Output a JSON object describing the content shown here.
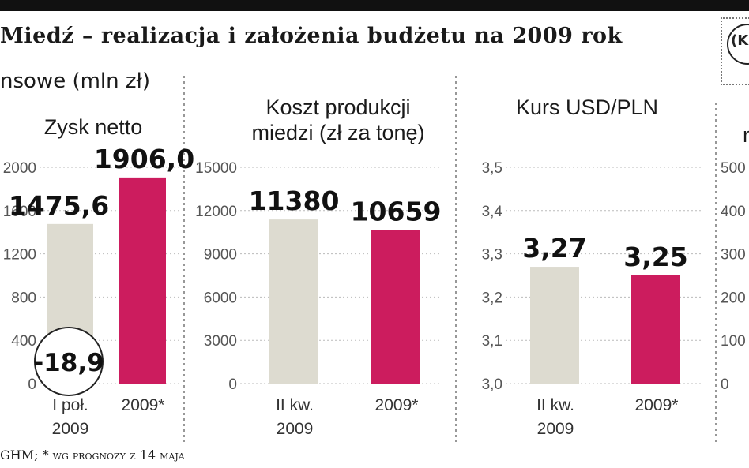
{
  "header": {
    "title": "Miedź – realizacja i założenia budżetu na 2009 rok",
    "section_label": "nsowe (mln zł)",
    "badge_text": "(K"
  },
  "footer": {
    "text": "GHM; * wg prognozy z 14 maja"
  },
  "colors": {
    "base_bar": "#dddbd0",
    "highlight_bar": "#cc1c5e"
  },
  "chart_data": [
    {
      "type": "bar",
      "title": "Zysk netto",
      "categories": [
        "I poł.\n2009",
        "2009*"
      ],
      "values": [
        1475.6,
        1906.0
      ],
      "value_labels": [
        "1475,6",
        "1906,0"
      ],
      "annotation": "-18,9",
      "yticks": [
        "0",
        "400",
        "800",
        "1200",
        "1600",
        "2000"
      ],
      "ylim": [
        0,
        2000
      ]
    },
    {
      "type": "bar",
      "title": "Koszt produkcji\nmiedzi (zł za tonę)",
      "categories": [
        "II kw.\n2009",
        "2009*"
      ],
      "values": [
        11380,
        10659
      ],
      "value_labels": [
        "11380",
        "10659"
      ],
      "yticks": [
        "0",
        "3000",
        "6000",
        "9000",
        "12000",
        "15000"
      ],
      "ylim": [
        0,
        15000
      ]
    },
    {
      "type": "bar",
      "title": "Kurs USD/PLN",
      "categories": [
        "II kw.\n2009",
        "2009*"
      ],
      "values": [
        3.27,
        3.25
      ],
      "value_labels": [
        "3,27",
        "3,25"
      ],
      "yticks": [
        "3,0",
        "3,1",
        "3,2",
        "3,3",
        "3,4",
        "3,5"
      ],
      "ylim": [
        3.0,
        3.5
      ]
    },
    {
      "type": "bar",
      "title": "n",
      "categories": [],
      "values": [],
      "yticks": [
        "0",
        "100",
        "200",
        "300",
        "400",
        "500"
      ],
      "ylim": [
        0,
        500
      ]
    }
  ]
}
